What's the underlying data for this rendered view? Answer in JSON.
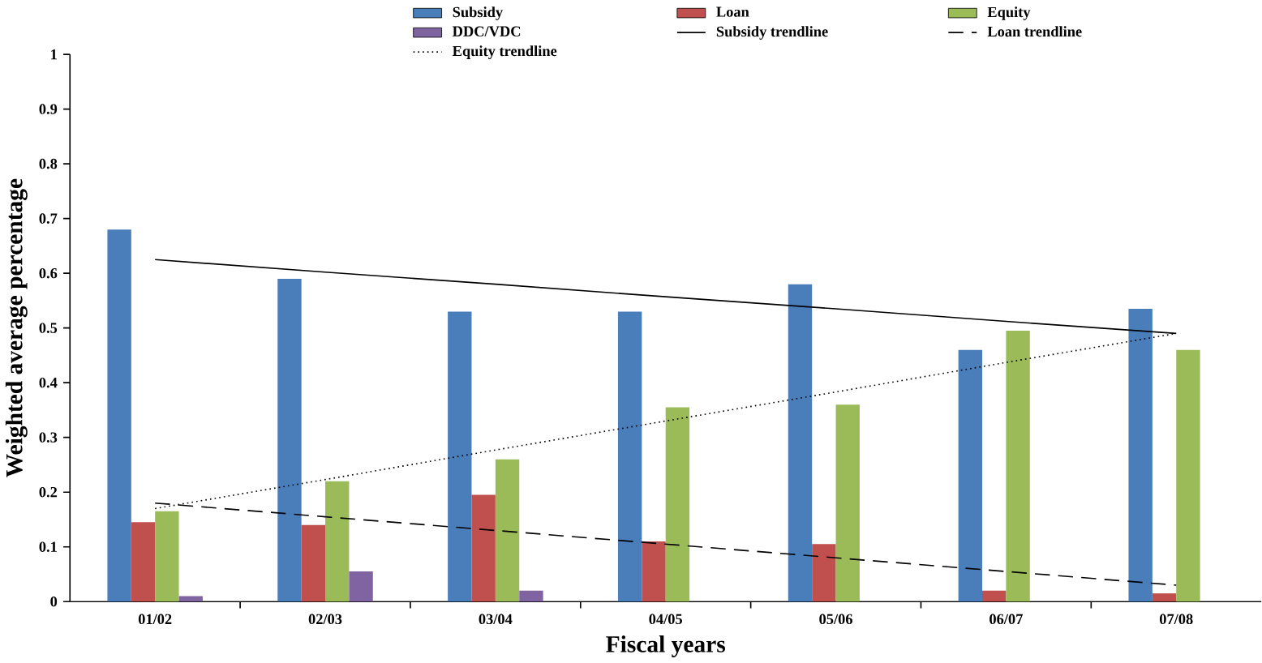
{
  "chart_data": {
    "type": "bar",
    "xlabel": "Fiscal years",
    "ylabel": "Weighted average percentage",
    "categories": [
      "01/02",
      "02/03",
      "03/04",
      "04/05",
      "05/06",
      "06/07",
      "07/08"
    ],
    "series": [
      {
        "name": "Subsidy",
        "color": "#4a7ebb",
        "values": [
          0.68,
          0.59,
          0.53,
          0.53,
          0.58,
          0.46,
          0.535
        ]
      },
      {
        "name": "Loan",
        "color": "#c0504d",
        "values": [
          0.145,
          0.14,
          0.195,
          0.11,
          0.105,
          0.02,
          0.015
        ]
      },
      {
        "name": "Equity",
        "color": "#9bbb59",
        "values": [
          0.165,
          0.22,
          0.26,
          0.355,
          0.36,
          0.495,
          0.46
        ]
      },
      {
        "name": "DDC/VDC",
        "color": "#8064a2",
        "values": [
          0.01,
          0.055,
          0.02,
          0,
          0,
          0,
          0
        ]
      },
      {
        "name": "Subsidy trendline",
        "type": "line",
        "line_style": "solid",
        "color": "#000000",
        "values": [
          0.625,
          0.602,
          0.58,
          0.557,
          0.535,
          0.512,
          0.49
        ]
      },
      {
        "name": "Loan trendline",
        "type": "line",
        "line_style": "dashed",
        "color": "#000000",
        "values": [
          0.18,
          0.155,
          0.13,
          0.105,
          0.08,
          0.055,
          0.03
        ]
      },
      {
        "name": "Equity trendline",
        "type": "line",
        "line_style": "dotted",
        "color": "#000000",
        "values": [
          0.17,
          0.223,
          0.277,
          0.33,
          0.383,
          0.437,
          0.49
        ]
      }
    ],
    "ylim": [
      0,
      1
    ],
    "yticks": [
      0,
      0.1,
      0.2,
      0.3,
      0.4,
      0.5,
      0.6,
      0.7,
      0.8,
      0.9,
      1
    ],
    "grid": false,
    "legend": "top",
    "marker": "none"
  }
}
